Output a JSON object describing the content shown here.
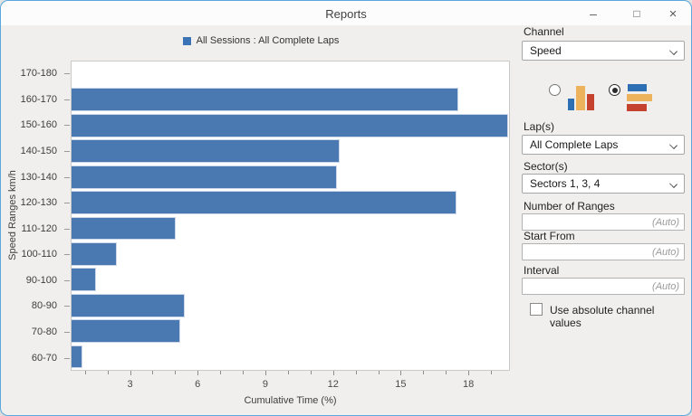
{
  "window": {
    "title": "Reports",
    "controls": {
      "minimize": "–",
      "maximize": "□",
      "close": "×"
    }
  },
  "legend": {
    "label": "All Sessions : All Complete Laps",
    "marker_color": "#3a74b6"
  },
  "chart_data": {
    "type": "bar",
    "orientation": "horizontal",
    "series_name": "All Sessions : All Complete Laps",
    "title": "",
    "xlabel": "Cumulative Time (%)",
    "ylabel": "Speed Ranges km/h",
    "categories": [
      "170-180",
      "160-170",
      "150-160",
      "140-150",
      "130-140",
      "120-130",
      "110-120",
      "100-110",
      "90-100",
      "80-90",
      "70-80",
      "60-70"
    ],
    "values": [
      0,
      17.6,
      19.8,
      12.3,
      12.2,
      17.5,
      5.0,
      2.4,
      1.45,
      5.4,
      5.2,
      0.85
    ],
    "xlim": [
      0.37,
      19.84
    ],
    "x_major_ticks": [
      3,
      6,
      9,
      12,
      15,
      18
    ],
    "x_minor_tick_step": 1,
    "bar_color": "#4a79b2",
    "grid": false,
    "legend_position": "top"
  },
  "sidebar": {
    "channel": {
      "label": "Channel",
      "value": "Speed"
    },
    "chart_type_vertical_selected": false,
    "chart_type_horizontal_selected": true,
    "laps": {
      "label": "Lap(s)",
      "value": "All Complete Laps"
    },
    "sectors": {
      "label": "Sector(s)",
      "value": "Sectors 1, 3, 4"
    },
    "number_of_ranges": {
      "label": "Number of Ranges",
      "value": "",
      "placeholder": "(Auto)"
    },
    "start_from": {
      "label": "Start From",
      "value": "",
      "placeholder": "(Auto)"
    },
    "interval": {
      "label": "Interval",
      "value": "",
      "placeholder": "(Auto)"
    },
    "absolute_values": {
      "label": "Use absolute channel values",
      "checked": false
    }
  },
  "colors": {
    "window_border": "#58a7dd",
    "bar": "#4a79b2",
    "icon_blue": "#2d6fb3",
    "icon_yellow": "#edb25c",
    "icon_red": "#c5432e"
  }
}
